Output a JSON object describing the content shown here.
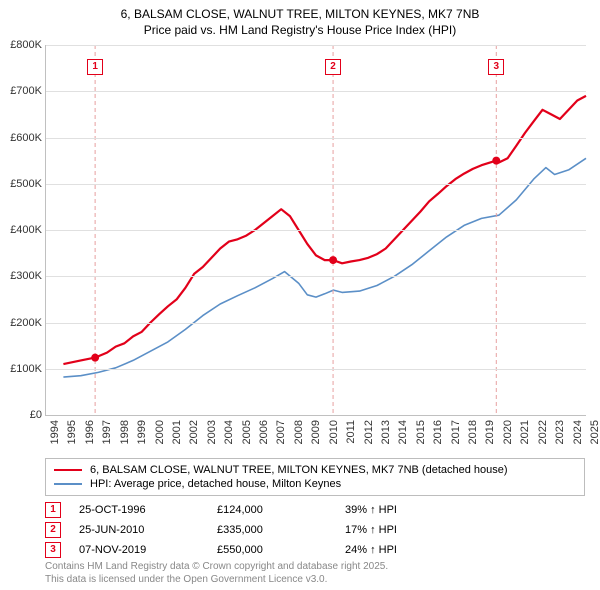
{
  "title_line1": "6, BALSAM CLOSE, WALNUT TREE, MILTON KEYNES, MK7 7NB",
  "title_line2": "Price paid vs. HM Land Registry's House Price Index (HPI)",
  "chart": {
    "type": "line",
    "background_color": "#ffffff",
    "grid_color": "#e0e0e0",
    "axis_color": "#c0c0c0",
    "x_years": [
      1994,
      1995,
      1996,
      1997,
      1998,
      1999,
      2000,
      2001,
      2002,
      2003,
      2004,
      2005,
      2006,
      2007,
      2008,
      2009,
      2010,
      2011,
      2012,
      2013,
      2014,
      2015,
      2016,
      2017,
      2018,
      2019,
      2020,
      2021,
      2022,
      2023,
      2024,
      2025
    ],
    "xlim": [
      1994,
      2025
    ],
    "ylim": [
      0,
      800000
    ],
    "ytick_step": 100000,
    "y_tick_labels": [
      "£0",
      "£100K",
      "£200K",
      "£300K",
      "£400K",
      "£500K",
      "£600K",
      "£700K",
      "£800K"
    ],
    "x_label_fontsize": 11,
    "y_label_fontsize": 11,
    "line_width_property": 2.2,
    "line_width_hpi": 1.6,
    "series": {
      "property": {
        "color": "#e2001a",
        "data": [
          [
            1995.0,
            110000
          ],
          [
            1996.0,
            118000
          ],
          [
            1996.82,
            124000
          ],
          [
            1997.5,
            135000
          ],
          [
            1998.0,
            148000
          ],
          [
            1998.5,
            155000
          ],
          [
            1999.0,
            170000
          ],
          [
            1999.5,
            180000
          ],
          [
            2000.0,
            200000
          ],
          [
            2000.5,
            218000
          ],
          [
            2001.0,
            235000
          ],
          [
            2001.5,
            250000
          ],
          [
            2002.0,
            275000
          ],
          [
            2002.5,
            305000
          ],
          [
            2003.0,
            320000
          ],
          [
            2003.5,
            340000
          ],
          [
            2004.0,
            360000
          ],
          [
            2004.5,
            375000
          ],
          [
            2005.0,
            380000
          ],
          [
            2005.5,
            388000
          ],
          [
            2006.0,
            400000
          ],
          [
            2006.5,
            415000
          ],
          [
            2007.0,
            430000
          ],
          [
            2007.5,
            445000
          ],
          [
            2008.0,
            430000
          ],
          [
            2008.5,
            400000
          ],
          [
            2009.0,
            370000
          ],
          [
            2009.5,
            345000
          ],
          [
            2010.0,
            335000
          ],
          [
            2010.48,
            335000
          ],
          [
            2011.0,
            328000
          ],
          [
            2011.5,
            332000
          ],
          [
            2012.0,
            335000
          ],
          [
            2012.5,
            340000
          ],
          [
            2013.0,
            348000
          ],
          [
            2013.5,
            360000
          ],
          [
            2014.0,
            380000
          ],
          [
            2014.5,
            400000
          ],
          [
            2015.0,
            420000
          ],
          [
            2015.5,
            440000
          ],
          [
            2016.0,
            462000
          ],
          [
            2016.5,
            478000
          ],
          [
            2017.0,
            495000
          ],
          [
            2017.5,
            510000
          ],
          [
            2018.0,
            522000
          ],
          [
            2018.5,
            532000
          ],
          [
            2019.0,
            540000
          ],
          [
            2019.85,
            550000
          ],
          [
            2020.0,
            546000
          ],
          [
            2020.5,
            555000
          ],
          [
            2021.0,
            582000
          ],
          [
            2021.5,
            610000
          ],
          [
            2022.0,
            635000
          ],
          [
            2022.5,
            660000
          ],
          [
            2023.0,
            650000
          ],
          [
            2023.5,
            640000
          ],
          [
            2024.0,
            660000
          ],
          [
            2024.5,
            680000
          ],
          [
            2025.0,
            690000
          ]
        ]
      },
      "hpi": {
        "color": "#5b8fc7",
        "data": [
          [
            1995.0,
            82000
          ],
          [
            1996.0,
            85000
          ],
          [
            1997.0,
            92000
          ],
          [
            1998.0,
            102000
          ],
          [
            1999.0,
            118000
          ],
          [
            2000.0,
            138000
          ],
          [
            2001.0,
            158000
          ],
          [
            2002.0,
            185000
          ],
          [
            2003.0,
            215000
          ],
          [
            2004.0,
            240000
          ],
          [
            2005.0,
            258000
          ],
          [
            2006.0,
            275000
          ],
          [
            2007.0,
            295000
          ],
          [
            2007.7,
            310000
          ],
          [
            2008.5,
            285000
          ],
          [
            2009.0,
            260000
          ],
          [
            2009.5,
            255000
          ],
          [
            2010.0,
            262000
          ],
          [
            2010.5,
            270000
          ],
          [
            2011.0,
            265000
          ],
          [
            2012.0,
            268000
          ],
          [
            2013.0,
            280000
          ],
          [
            2014.0,
            300000
          ],
          [
            2015.0,
            325000
          ],
          [
            2016.0,
            355000
          ],
          [
            2017.0,
            385000
          ],
          [
            2018.0,
            410000
          ],
          [
            2019.0,
            425000
          ],
          [
            2020.0,
            432000
          ],
          [
            2021.0,
            465000
          ],
          [
            2022.0,
            510000
          ],
          [
            2022.7,
            535000
          ],
          [
            2023.2,
            520000
          ],
          [
            2024.0,
            530000
          ],
          [
            2025.0,
            555000
          ]
        ]
      }
    },
    "sale_markers": [
      {
        "n": "1",
        "year": 1996.82,
        "price": 124000,
        "color": "#e2001a"
      },
      {
        "n": "2",
        "year": 2010.48,
        "price": 335000,
        "color": "#e2001a"
      },
      {
        "n": "3",
        "year": 2019.85,
        "price": 550000,
        "color": "#e2001a"
      }
    ],
    "marker_dash_color": "#e7a0a0",
    "marker_dot_color": "#e2001a"
  },
  "legend": {
    "items": [
      {
        "color": "#e2001a",
        "label": "6, BALSAM CLOSE, WALNUT TREE, MILTON KEYNES, MK7 7NB (detached house)"
      },
      {
        "color": "#5b8fc7",
        "label": "HPI: Average price, detached house, Milton Keynes"
      }
    ]
  },
  "sales": [
    {
      "n": "1",
      "date": "25-OCT-1996",
      "price": "£124,000",
      "diff": "39% ↑ HPI"
    },
    {
      "n": "2",
      "date": "25-JUN-2010",
      "price": "£335,000",
      "diff": "17% ↑ HPI"
    },
    {
      "n": "3",
      "date": "07-NOV-2019",
      "price": "£550,000",
      "diff": "24% ↑ HPI"
    }
  ],
  "sale_marker_color": "#e2001a",
  "footnote_line1": "Contains HM Land Registry data © Crown copyright and database right 2025.",
  "footnote_line2": "This data is licensed under the Open Government Licence v3.0."
}
